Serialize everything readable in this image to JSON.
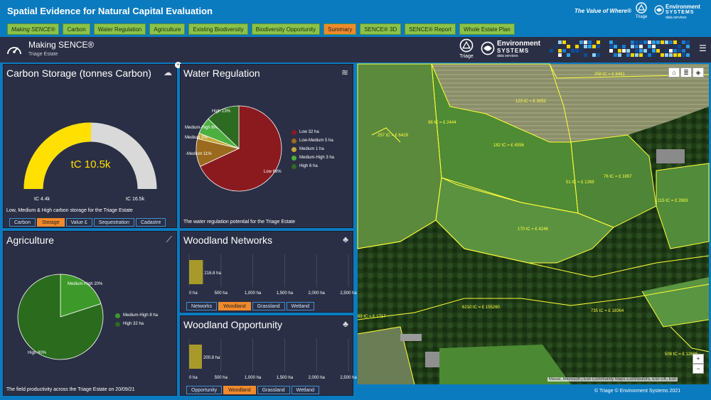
{
  "header": {
    "title": "Spatial Evidence for Natural Capital Evaluation",
    "tagline": "The Value of Where®",
    "logo_triage": "Triage",
    "logo_es_line1": "Environment",
    "logo_es_line2": "SYSTEMS",
    "logo_es_line3": "data services"
  },
  "tabs": [
    {
      "label": "Making SENCE®"
    },
    {
      "label": "Carbon"
    },
    {
      "label": "Water Regulation"
    },
    {
      "label": "Agriculture"
    },
    {
      "label": "Existing Biodiversity"
    },
    {
      "label": "Biodiversity Opportunity"
    },
    {
      "label": "Summary"
    },
    {
      "label": "SENCE® 3D"
    },
    {
      "label": "SENCE® Report"
    },
    {
      "label": "Whole Estate Plan"
    }
  ],
  "active_tab": "Summary",
  "dashboard": {
    "title": "Making SENCE®",
    "subtitle": "Triage Estate"
  },
  "carbon": {
    "title": "Carbon Storage (tonnes Carbon)",
    "value_label": "tC 10.5k",
    "min_label": "tC 4.4k",
    "max_label": "tC 16.5k",
    "min": 4.4,
    "max": 16.5,
    "value": 10.5,
    "caption": "Low, Medium & High carbon storage for the Triage Estate",
    "buttons": [
      "Carbon",
      "Storage",
      "Value £",
      "Sequestration",
      "Cadastre"
    ],
    "active_button": "Storage",
    "color_fill": "#ffe000",
    "color_track": "#d9d9d9"
  },
  "water": {
    "title": "Water Regulation",
    "caption": "The water regulation potential for the Triage Estate",
    "chart_data": {
      "type": "pie",
      "slices": [
        {
          "name": "Low",
          "label": "Low 32 ha",
          "value": 32,
          "color": "#8b1a1f",
          "pct_label": "Low 68%"
        },
        {
          "name": "Low-Medium",
          "label": "Low-Medium 5 ha",
          "value": 5,
          "color": "#9a6b1f",
          "pct_label": "-Medium 11%"
        },
        {
          "name": "Medium",
          "label": "Medium 1 ha",
          "value": 1,
          "color": "#c4a93a",
          "pct_label": "Medium 2%"
        },
        {
          "name": "Medium-High",
          "label": "Medium-High 3 ha",
          "value": 3,
          "color": "#4caf3f",
          "pct_label": "Medium-High 6%"
        },
        {
          "name": "High",
          "label": "High 6 ha",
          "value": 6,
          "color": "#2e6b22",
          "pct_label": "High 13%"
        }
      ]
    }
  },
  "agriculture": {
    "title": "Agriculture",
    "caption": "The field productivity across the Triage Estate on 20/09/21",
    "chart_data": {
      "type": "pie",
      "slices": [
        {
          "name": "Medium-High",
          "label": "Medium-High 8 ha",
          "value": 8,
          "color": "#3d9a2a",
          "pct_label": "Medium-High 20%"
        },
        {
          "name": "High",
          "label": "High 32 ha",
          "value": 32,
          "color": "#2a6b1e",
          "pct_label": "High 80%"
        }
      ]
    }
  },
  "woodland_networks": {
    "title": "Woodland Networks",
    "buttons": [
      "Networks",
      "Woodland",
      "Grassland",
      "Wetland"
    ],
    "active_button": "Woodland",
    "chart_data": {
      "type": "bar",
      "orientation": "horizontal",
      "values": [
        216.8
      ],
      "value_label": "216.8 ha",
      "xlim": [
        0,
        2500
      ],
      "ticks": [
        "0 ha",
        "500 ha",
        "1,000 ha",
        "1,500 ha",
        "2,000 ha",
        "2,500 ha"
      ],
      "color": "#a79a2a"
    }
  },
  "woodland_opportunity": {
    "title": "Woodland Opportunity",
    "buttons": [
      "Opportunity",
      "Woodland",
      "Grassland",
      "Wetland"
    ],
    "active_button": "Woodland",
    "chart_data": {
      "type": "bar",
      "orientation": "horizontal",
      "values": [
        200.8
      ],
      "value_label": "200.8 ha",
      "xlim": [
        0,
        2500
      ],
      "ticks": [
        "0 ha",
        "500 ha",
        "1,000 ha",
        "1,500 ha",
        "2,000 ha",
        "2,500 ha"
      ],
      "color": "#a79a2a"
    }
  },
  "map": {
    "labels": [
      "258 tC = £ 6461",
      "123 tC = £ 3052",
      "98 tC = £ 2444",
      "257 tC = £ 6419",
      "182 tC = £ 4556",
      "76 tC = £ 1897",
      "51 tC = £ 1269",
      "115 tC = £ 2883",
      "170 tC = £ 4246",
      "6210 tC = £ 155260",
      "735 tC = £ 18364",
      "69 tC = £ 1717",
      "508 tC = £ 12686"
    ],
    "attribution": "Maxar, Microsoft | Esri Community Maps Contributors, Esri UK, Esri",
    "zoom_in": "+",
    "zoom_out": "−"
  },
  "footer": "© Triage © Environment Systems 2021"
}
